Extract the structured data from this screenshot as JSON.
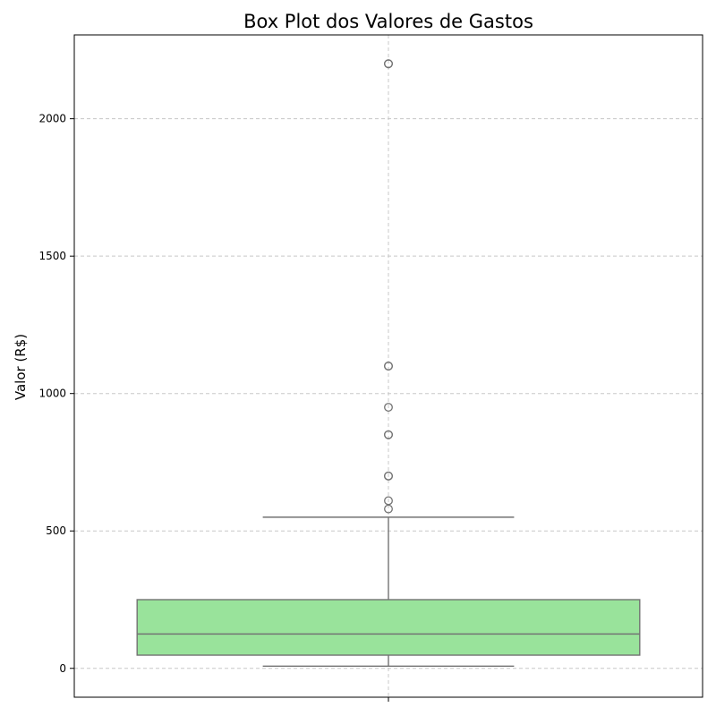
{
  "chart_data": {
    "type": "box",
    "title": "Box Plot dos Valores de Gastos",
    "xlabel": "",
    "ylabel": "Valor (R$)",
    "ylim": [
      -105,
      2305
    ],
    "yticks": [
      0,
      500,
      1000,
      1500,
      2000
    ],
    "grid": true,
    "colors": {
      "box_fill": "#99e39b",
      "box_stroke": "#737373",
      "grid": "#c8c8c8",
      "outlier_stroke": "#737373"
    },
    "box": {
      "min": 8,
      "q1": 48,
      "median": 125,
      "q3": 250,
      "max": 550,
      "outliers": [
        580,
        610,
        700,
        700,
        850,
        850,
        950,
        1100,
        1100,
        2200,
        2200
      ]
    }
  }
}
